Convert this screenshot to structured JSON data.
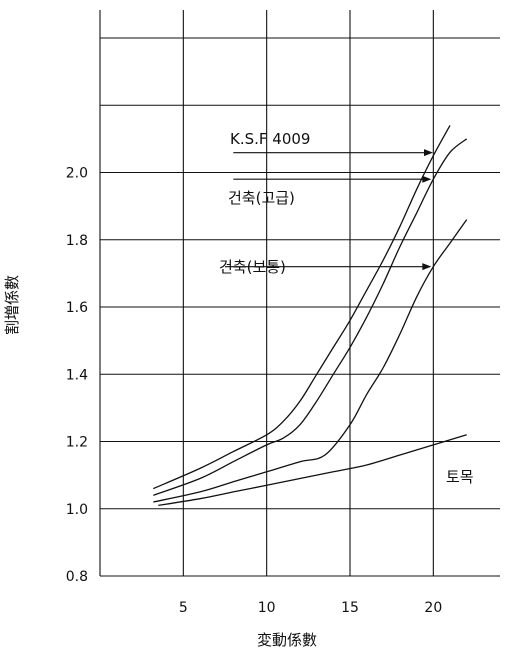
{
  "chart_data": {
    "type": "line",
    "title": "",
    "xlabel": "変動係數",
    "ylabel": "割増係數",
    "xlim": [
      0,
      24
    ],
    "ylim": [
      0.8,
      2.4
    ],
    "x_ticks": [
      "5",
      "10",
      "15",
      "20"
    ],
    "y_ticks": [
      "0.8",
      "1.0",
      "1.2",
      "1.4",
      "1.6",
      "1.8",
      "2.0"
    ],
    "grid": true,
    "series": [
      {
        "name": "K.S.F 4009",
        "x": [
          3.2,
          6,
          8,
          10,
          11,
          12,
          13,
          14,
          15,
          16,
          17,
          18,
          19,
          20,
          21
        ],
        "y": [
          1.06,
          1.12,
          1.17,
          1.22,
          1.26,
          1.32,
          1.4,
          1.48,
          1.56,
          1.65,
          1.74,
          1.84,
          1.95,
          2.05,
          2.14
        ]
      },
      {
        "name": "건축(고급)",
        "x": [
          3.2,
          6,
          8,
          10,
          11,
          12,
          13,
          14,
          15,
          16,
          17,
          18,
          19,
          20,
          21,
          22
        ],
        "y": [
          1.04,
          1.09,
          1.14,
          1.19,
          1.21,
          1.25,
          1.32,
          1.4,
          1.48,
          1.57,
          1.67,
          1.78,
          1.88,
          1.98,
          2.06,
          2.1
        ]
      },
      {
        "name": "건축(보통)",
        "x": [
          3.2,
          6,
          8,
          10,
          12,
          13.5,
          15,
          16,
          17,
          18,
          19,
          20,
          21,
          22
        ],
        "y": [
          1.02,
          1.05,
          1.08,
          1.11,
          1.14,
          1.16,
          1.25,
          1.34,
          1.42,
          1.52,
          1.63,
          1.72,
          1.79,
          1.86
        ]
      },
      {
        "name": "토목",
        "x": [
          3.5,
          6,
          8,
          10,
          12,
          14,
          16,
          18,
          20,
          22
        ],
        "y": [
          1.01,
          1.03,
          1.05,
          1.07,
          1.09,
          1.11,
          1.13,
          1.16,
          1.19,
          1.22
        ]
      }
    ],
    "annotations": [
      {
        "text": "K.S.F 4009",
        "series": "K.S.F 4009"
      },
      {
        "text": "건축(고급)",
        "series": "건축(고급)"
      },
      {
        "text": "건축(보통)",
        "series": "건축(보통)"
      },
      {
        "text": "토목",
        "series": "토목"
      }
    ]
  }
}
